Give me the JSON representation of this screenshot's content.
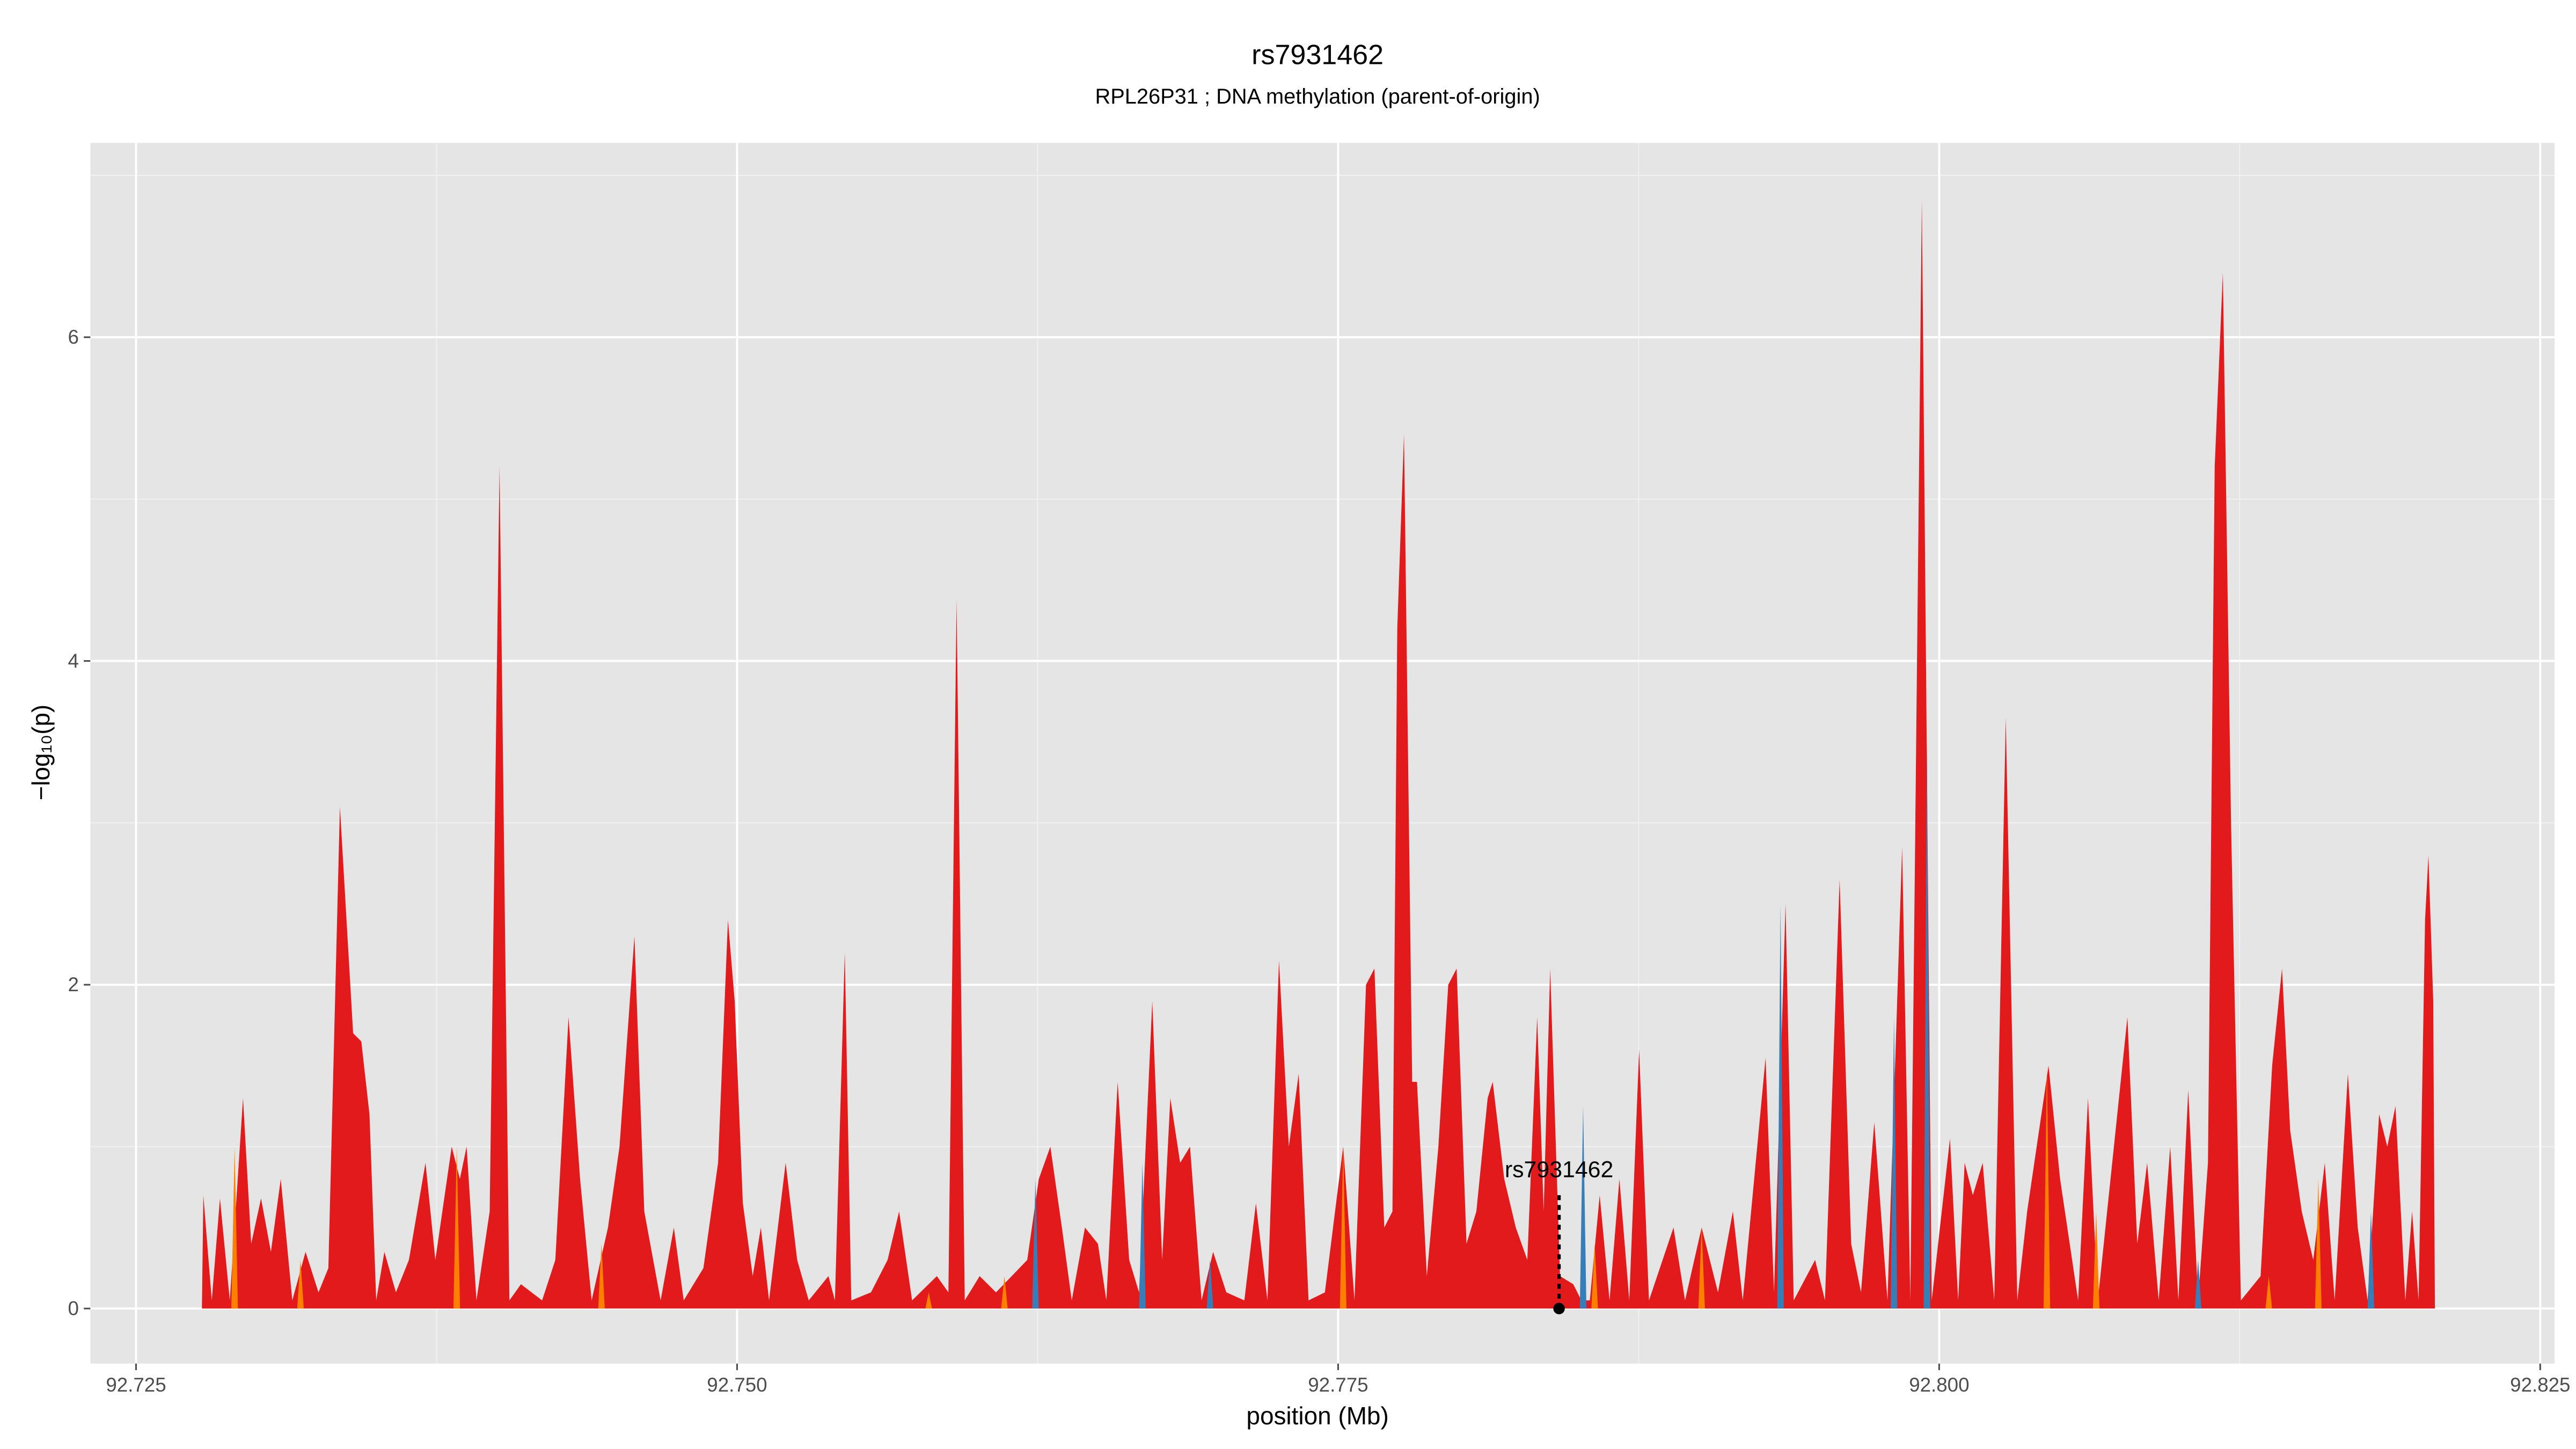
{
  "chart_data": {
    "type": "area",
    "title": "rs7931462",
    "subtitle": "RPL26P31 ; DNA methylation (parent-of-origin)",
    "xlabel": "position (Mb)",
    "ylabel": "−log₁₀(p)",
    "xlim": [
      92.7231,
      92.8256
    ],
    "ylim": [
      -0.34,
      7.2
    ],
    "xticks": [
      92.725,
      {
        "value": 92.75,
        "label": "92.750"
      },
      92.775,
      {
        "value": 92.8,
        "label": "92.800"
      },
      92.825
    ],
    "yticks": [
      0,
      2,
      4,
      6
    ],
    "xminor": [
      92.7375,
      92.7625,
      92.7875,
      92.8125
    ],
    "yminor": [
      1,
      3,
      5,
      7
    ],
    "grid": true,
    "background": "#e5e5e5",
    "series": [
      {
        "color": "#e31a1c",
        "x": [
          92.72774,
          92.7278,
          92.72815,
          92.72849,
          92.7289,
          92.72945,
          92.72979,
          92.7302,
          92.73061,
          92.73102,
          92.7315,
          92.73205,
          92.73259,
          92.733,
          92.73348,
          92.73403,
          92.73437,
          92.73471,
          92.73499,
          92.73533,
          92.73581,
          92.73635,
          92.73704,
          92.73745,
          92.73813,
          92.73847,
          92.73875,
          92.73916,
          92.73971,
          92.74012,
          92.74053,
          92.74101,
          92.74189,
          92.74244,
          92.74299,
          92.74347,
          92.74395,
          92.74463,
          92.74511,
          92.74573,
          92.74614,
          92.74682,
          92.74737,
          92.74778,
          92.7486,
          92.74921,
          92.74962,
          92.7499,
          92.75024,
          92.75065,
          92.75099,
          92.75133,
          92.75202,
          92.7525,
          92.75298,
          92.7538,
          92.75407,
          92.75448,
          92.75475,
          92.75557,
          92.75626,
          92.75674,
          92.75728,
          92.75831,
          92.75879,
          92.75913,
          92.75947,
          92.76009,
          92.76077,
          92.76207,
          92.76255,
          92.76303,
          92.76351,
          92.76392,
          92.76447,
          92.76501,
          92.76536,
          92.76583,
          92.76631,
          92.76672,
          92.76727,
          92.76768,
          92.76802,
          92.76843,
          92.76884,
          92.76932,
          92.7698,
          92.77035,
          92.7711,
          92.77158,
          92.77206,
          92.77254,
          92.77295,
          92.77336,
          92.77377,
          92.77445,
          92.77521,
          92.77568,
          92.77616,
          92.77651,
          92.77692,
          92.77726,
          92.77746,
          92.77774,
          92.77808,
          92.77828,
          92.77869,
          92.77917,
          92.77958,
          92.77993,
          92.78034,
          92.78075,
          92.78122,
          92.78143,
          92.78191,
          92.78239,
          92.78287,
          92.78328,
          92.78355,
          92.78382,
          92.78423,
          92.78478,
          92.78512,
          92.78547,
          92.78588,
          92.78629,
          92.7867,
          92.78711,
          92.78752,
          92.78793,
          92.78895,
          92.78943,
          92.79012,
          92.7908,
          92.79142,
          92.79183,
          92.79278,
          92.79313,
          92.79361,
          92.79395,
          92.79484,
          92.79525,
          92.79586,
          92.79634,
          92.79675,
          92.7973,
          92.79785,
          92.79846,
          92.7988,
          92.79928,
          92.79969,
          92.80045,
          92.80079,
          92.80106,
          92.8014,
          92.80181,
          92.80229,
          92.80277,
          92.80325,
          92.80366,
          92.80455,
          92.80503,
          92.80578,
          92.80619,
          92.8066,
          92.80783,
          92.80824,
          92.80865,
          92.80913,
          92.80961,
          92.80995,
          92.81036,
          92.81077,
          92.81118,
          92.81146,
          92.8118,
          92.81214,
          92.81255,
          92.81337,
          92.81385,
          92.81426,
          92.8146,
          92.81508,
          92.81556,
          92.81604,
          92.81645,
          92.817,
          92.81741,
          92.81782,
          92.8183,
          92.81864,
          92.81898,
          92.81939,
          92.81967,
          92.81994,
          92.82021,
          92.82035,
          92.82055,
          92.82062
        ],
        "values": [
          0,
          0.7,
          0.05,
          0.68,
          0.05,
          1.3,
          0.4,
          0.68,
          0.35,
          0.8,
          0.05,
          0.35,
          0.1,
          0.25,
          3.1,
          1.7,
          1.65,
          1.2,
          0.05,
          0.35,
          0.1,
          0.3,
          0.9,
          0.3,
          1.0,
          0.8,
          1.0,
          0.05,
          0.6,
          5.2,
          0.05,
          0.15,
          0.05,
          0.3,
          1.8,
          0.8,
          0.05,
          0.5,
          1.0,
          2.3,
          0.6,
          0.05,
          0.5,
          0.05,
          0.25,
          0.9,
          2.4,
          1.9,
          0.65,
          0.2,
          0.5,
          0.05,
          0.9,
          0.3,
          0.05,
          0.2,
          0.05,
          2.2,
          0.05,
          0.1,
          0.3,
          0.6,
          0.05,
          0.2,
          0.1,
          4.38,
          0.05,
          0.2,
          0.1,
          0.3,
          0.8,
          1.0,
          0.5,
          0.05,
          0.5,
          0.4,
          0.05,
          1.4,
          0.3,
          0.1,
          1.9,
          0.3,
          1.3,
          0.9,
          1.0,
          0.05,
          0.35,
          0.1,
          0.05,
          0.65,
          0.05,
          2.15,
          1.0,
          1.45,
          0.05,
          0.1,
          1.0,
          0.05,
          2.0,
          2.1,
          0.5,
          0.6,
          4.2,
          5.4,
          1.4,
          1.4,
          0.2,
          1.0,
          2.0,
          2.1,
          0.4,
          0.6,
          1.3,
          1.4,
          0.8,
          0.5,
          0.3,
          1.8,
          0.6,
          2.1,
          0.2,
          0.15,
          0.05,
          0.05,
          0.7,
          0.05,
          0.8,
          0.05,
          1.6,
          0.05,
          0.5,
          0.05,
          0.5,
          0.1,
          0.6,
          0.05,
          1.55,
          0.1,
          2.5,
          0.05,
          0.3,
          0.05,
          2.65,
          0.4,
          0.1,
          1.15,
          0.05,
          2.85,
          0.05,
          6.85,
          0.05,
          1.05,
          0.05,
          0.9,
          0.7,
          0.9,
          0.05,
          3.65,
          0.05,
          0.6,
          1.5,
          0.8,
          0.05,
          1.3,
          0.05,
          1.8,
          0.4,
          0.9,
          0.05,
          1.0,
          0.05,
          1.35,
          0.05,
          0.9,
          5.2,
          6.4,
          3.0,
          0.05,
          0.2,
          1.5,
          2.1,
          1.1,
          0.6,
          0.3,
          0.9,
          0.05,
          1.45,
          0.5,
          0.05,
          1.2,
          1.0,
          1.25,
          0.05,
          0.6,
          0.05,
          2.4,
          2.8,
          1.9,
          0
        ]
      },
      {
        "color": "#377eb8",
        "x": [
          92.76241,
          92.76686,
          92.76967,
          92.78519,
          92.7934,
          92.79812,
          92.79949,
          92.81077,
          92.81796
        ],
        "values": [
          0.8,
          0.9,
          0.3,
          1.25,
          2.5,
          1.8,
          3.5,
          0.3,
          0.6
        ]
      },
      {
        "color": "#ff7f00",
        "x": [
          92.7291,
          92.73184,
          92.73834,
          92.74436,
          92.75797,
          92.76112,
          92.77521,
          92.78567,
          92.79012,
          92.80448,
          92.80653,
          92.81371,
          92.81577
        ],
        "values": [
          1.0,
          0.3,
          1.0,
          0.4,
          0.1,
          0.2,
          1.0,
          0.4,
          0.5,
          1.5,
          0.6,
          0.2,
          0.8
        ]
      }
    ],
    "annotation": {
      "text": "rs7931462",
      "x": 92.78419,
      "y": 0
    }
  }
}
